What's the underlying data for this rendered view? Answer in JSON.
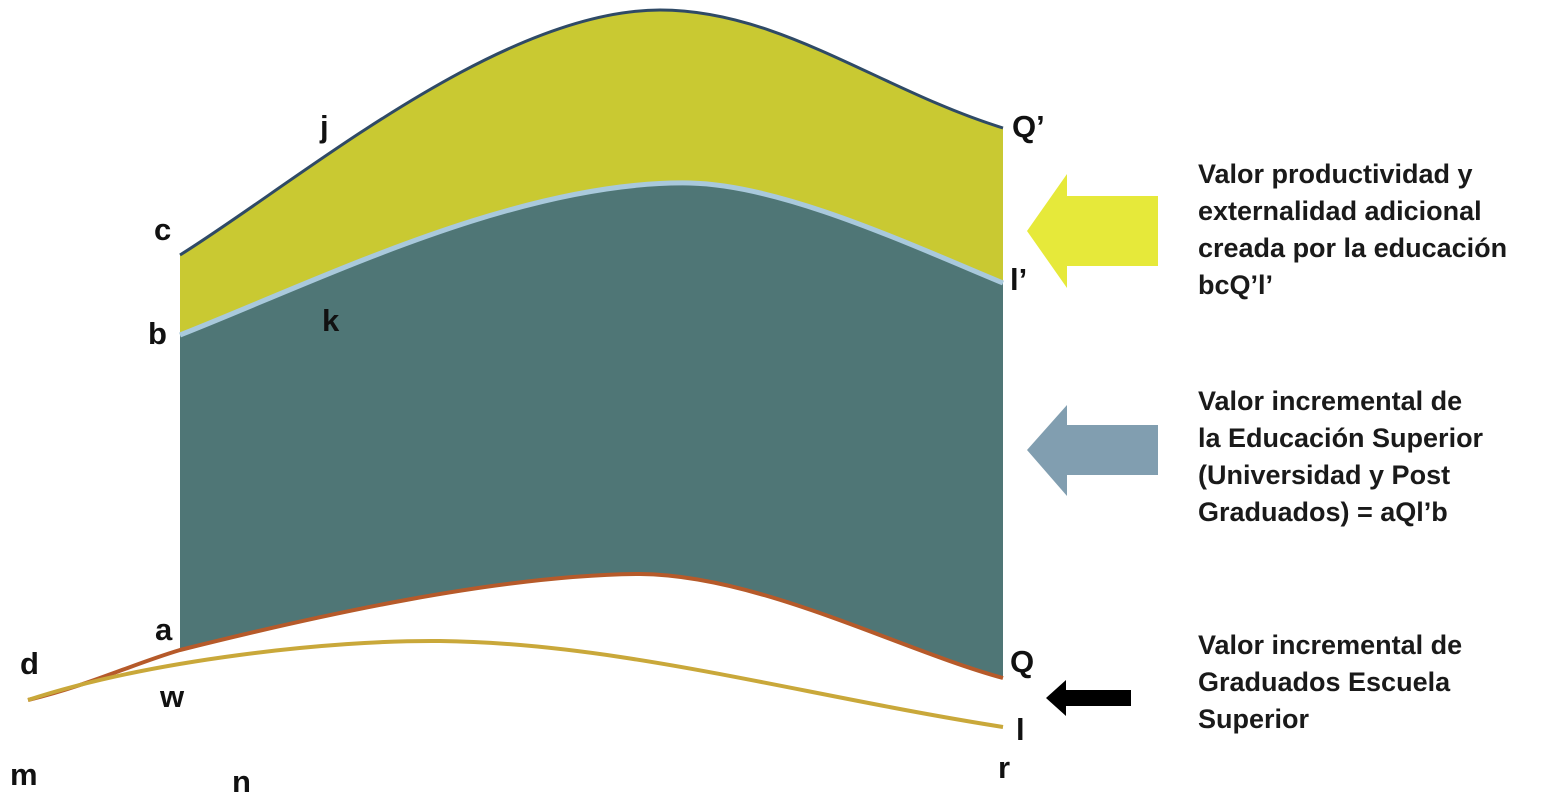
{
  "labels": {
    "j": "j",
    "c": "c",
    "b": "b",
    "k": "k",
    "q_prime": "Q’",
    "l_prime": "l’",
    "a": "a",
    "d": "d",
    "w": "w",
    "q": "Q",
    "l": "l",
    "m": "m",
    "n": "n",
    "r": "r"
  },
  "legend": {
    "yellow": "Valor productividad y\nexternalidad adicional\ncreada por la educación\nbcQ’l’",
    "blue": "Valor incremental de\nla Educación Superior\n(Universidad y Post\nGraduados) =  aQl’b",
    "black": "Valor incremental de\nGraduados  Escuela\nSuperior"
  },
  "colors": {
    "yellow_band": "#c9c932",
    "blue_band": "#4f7676",
    "top_line": "#2f4a66",
    "mid_line": "#a9c9dc",
    "lower_curve": "#b65a2a",
    "bottom_curve": "#c9a83a",
    "arrow_yellow": "#e6e93a",
    "arrow_blue": "#819eb0",
    "arrow_black": "#000000"
  },
  "icons": [
    "left-arrow-yellow",
    "left-arrow-blue",
    "left-arrow-black"
  ]
}
